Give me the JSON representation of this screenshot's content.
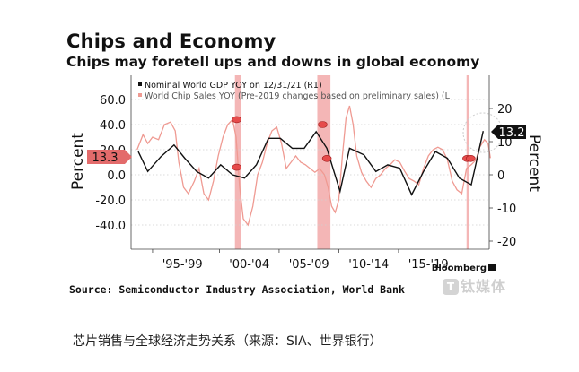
{
  "header": {
    "title": "Chips and Economy",
    "subtitle": "Chips may foretell ups and downs in global economy"
  },
  "footer": {
    "source": "Source: Semiconductor Industry Association, World Bank",
    "brand": "Bloomberg",
    "caption": "芯片销售与全球经济走势关系（来源：SIA、世界银行）"
  },
  "watermark": {
    "text": "钛媒体"
  },
  "colors": {
    "gdp": "#111111",
    "chip": "#ef9a92",
    "recession": "#f2a9a9",
    "marker": "#e64b4b",
    "label_red": "#e36b6b"
  },
  "chart_data": {
    "type": "line",
    "title": "Chips and Economy",
    "subtitle": "Chips may foretell ups and downs in global economy",
    "x_tick_labels": [
      "'95-'99",
      "'00-'04",
      "'05-'09",
      "'10-'14",
      "'15-'19"
    ],
    "x_range": [
      1992,
      2022
    ],
    "left_axis": {
      "label": "Percent",
      "ticks": [
        "60.0",
        "40.0",
        "20.0",
        "0.0",
        "-20.0",
        "-40.0"
      ],
      "ylim": [
        -50,
        80
      ]
    },
    "right_axis": {
      "label": "Percent",
      "ticks": [
        "20",
        "10",
        "0",
        "-10",
        "-20"
      ],
      "ylim": [
        -20,
        20
      ]
    },
    "legend": [
      {
        "label": "Nominal World GDP YOY on 12/31/21 (R1)",
        "color": "#111111"
      },
      {
        "label": "World Chip Sales YOY (Pre-2019 changes based on preliminary sales) (L",
        "color": "#ef9a92"
      }
    ],
    "last_values": {
      "chip": "13.3",
      "gdp": "13.2"
    },
    "shaded_periods": [
      [
        2000.7,
        2001.2
      ],
      [
        2007.6,
        2008.7
      ],
      [
        2020.1,
        2020.3
      ]
    ],
    "series": [
      {
        "name": "Nominal World GDP YOY on 12/31/21 (R1)",
        "axis": "right",
        "points": [
          [
            1992.6,
            7
          ],
          [
            1993.4,
            1
          ],
          [
            1994.5,
            5.5
          ],
          [
            1995.6,
            9
          ],
          [
            1996.5,
            5
          ],
          [
            1997.5,
            1
          ],
          [
            1998.5,
            -1
          ],
          [
            1999.5,
            3
          ],
          [
            2000.5,
            0
          ],
          [
            2001.5,
            -1
          ],
          [
            2002.5,
            3
          ],
          [
            2003.5,
            11
          ],
          [
            2004.5,
            11
          ],
          [
            2005.5,
            8
          ],
          [
            2006.5,
            8
          ],
          [
            2007.5,
            13
          ],
          [
            2008.4,
            8
          ],
          [
            2009.5,
            -5
          ],
          [
            2010.3,
            8
          ],
          [
            2011.5,
            6
          ],
          [
            2012.5,
            1
          ],
          [
            2013.5,
            3
          ],
          [
            2014.5,
            2
          ],
          [
            2015.5,
            -6
          ],
          [
            2016.5,
            1
          ],
          [
            2017.5,
            7
          ],
          [
            2018.5,
            5
          ],
          [
            2019.5,
            -1
          ],
          [
            2020.5,
            -3
          ],
          [
            2021.5,
            13.2
          ]
        ]
      },
      {
        "name": "World Chip Sales YOY (Pre-2019 changes based on preliminary sales) (L",
        "axis": "left",
        "points": [
          [
            1992.5,
            20
          ],
          [
            1993,
            32
          ],
          [
            1993.4,
            25
          ],
          [
            1993.8,
            30
          ],
          [
            1994.3,
            28
          ],
          [
            1994.8,
            40
          ],
          [
            1995.3,
            42
          ],
          [
            1995.7,
            35
          ],
          [
            1996,
            10
          ],
          [
            1996.4,
            -10
          ],
          [
            1996.8,
            -15
          ],
          [
            1997.3,
            -5
          ],
          [
            1997.7,
            5
          ],
          [
            1998.1,
            -15
          ],
          [
            1998.5,
            -20
          ],
          [
            1998.9,
            -5
          ],
          [
            1999.3,
            15
          ],
          [
            1999.7,
            30
          ],
          [
            2000.1,
            40
          ],
          [
            2000.5,
            44
          ],
          [
            2000.8,
            30
          ],
          [
            2001.1,
            -10
          ],
          [
            2001.4,
            -35
          ],
          [
            2001.8,
            -40
          ],
          [
            2002.2,
            -25
          ],
          [
            2002.6,
            0
          ],
          [
            2003,
            10
          ],
          [
            2003.4,
            25
          ],
          [
            2003.8,
            35
          ],
          [
            2004.2,
            38
          ],
          [
            2004.6,
            25
          ],
          [
            2005,
            5
          ],
          [
            2005.4,
            10
          ],
          [
            2005.8,
            15
          ],
          [
            2006.2,
            10
          ],
          [
            2006.6,
            8
          ],
          [
            2007,
            5
          ],
          [
            2007.4,
            2
          ],
          [
            2007.8,
            5
          ],
          [
            2008.2,
            0
          ],
          [
            2008.5,
            -10
          ],
          [
            2008.8,
            -25
          ],
          [
            2009.1,
            -30
          ],
          [
            2009.4,
            -20
          ],
          [
            2009.7,
            15
          ],
          [
            2010,
            45
          ],
          [
            2010.3,
            55
          ],
          [
            2010.6,
            40
          ],
          [
            2010.9,
            15
          ],
          [
            2011.3,
            2
          ],
          [
            2011.7,
            -5
          ],
          [
            2012.1,
            -10
          ],
          [
            2012.5,
            -3
          ],
          [
            2012.9,
            0
          ],
          [
            2013.3,
            5
          ],
          [
            2013.7,
            8
          ],
          [
            2014.1,
            12
          ],
          [
            2014.5,
            10
          ],
          [
            2014.9,
            3
          ],
          [
            2015.3,
            -3
          ],
          [
            2015.7,
            -5
          ],
          [
            2016.1,
            -8
          ],
          [
            2016.5,
            5
          ],
          [
            2016.9,
            15
          ],
          [
            2017.3,
            20
          ],
          [
            2017.7,
            22
          ],
          [
            2018.1,
            20
          ],
          [
            2018.5,
            12
          ],
          [
            2018.9,
            -5
          ],
          [
            2019.3,
            -12
          ],
          [
            2019.7,
            -15
          ],
          [
            2020.1,
            5
          ],
          [
            2020.5,
            8
          ],
          [
            2020.9,
            12
          ],
          [
            2021.2,
            22
          ],
          [
            2021.6,
            28
          ],
          [
            2021.9,
            25
          ],
          [
            2022.1,
            13.3
          ]
        ]
      }
    ]
  }
}
